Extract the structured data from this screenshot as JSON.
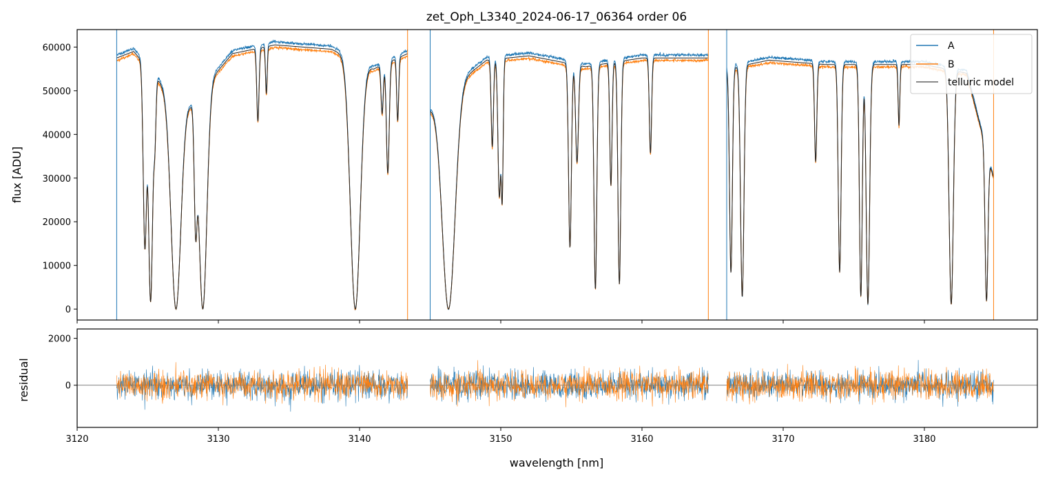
{
  "chart_data": [
    {
      "type": "line",
      "title": "zet_Oph_L3340_2024-06-17_06364  order 06",
      "ylabel": "flux [ADU]",
      "xlim": [
        3120,
        3188
      ],
      "ylim": [
        -2500,
        64000
      ],
      "yticks": [
        0,
        10000,
        20000,
        30000,
        40000,
        50000,
        60000
      ],
      "ytick_labels": [
        "0",
        "10000",
        "20000",
        "30000",
        "40000",
        "50000",
        "60000"
      ],
      "legend_placement": "top-right",
      "legend": [
        "A",
        "B",
        "telluric model"
      ],
      "colors": {
        "A": "#1f77b4",
        "B": "#ff7f0e",
        "model": "#202020"
      },
      "segments": [
        [
          3122.8,
          3143.4
        ],
        [
          3145.0,
          3164.7
        ],
        [
          3166.0,
          3184.9
        ]
      ],
      "continuum": [
        [
          3122.8,
          57500
        ],
        [
          3124.0,
          59000
        ],
        [
          3126.0,
          51500
        ],
        [
          3128.0,
          47000
        ],
        [
          3131.0,
          58500
        ],
        [
          3134.0,
          60500
        ],
        [
          3138.0,
          59500
        ],
        [
          3141.0,
          55000
        ],
        [
          3143.4,
          58500
        ],
        [
          3145.0,
          46000
        ],
        [
          3147.0,
          52000
        ],
        [
          3149.0,
          57000
        ],
        [
          3152.0,
          58000
        ],
        [
          3156.0,
          55500
        ],
        [
          3160.0,
          57500
        ],
        [
          3164.7,
          57500
        ],
        [
          3166.0,
          55000
        ],
        [
          3169.0,
          57000
        ],
        [
          3173.0,
          56000
        ],
        [
          3176.0,
          56000
        ],
        [
          3180.0,
          56000
        ],
        [
          3183.0,
          54000
        ],
        [
          3184.9,
          30000
        ]
      ],
      "absorption_lines": [
        {
          "center": 3124.8,
          "depth": 0.75,
          "width": 0.12
        },
        {
          "center": 3125.2,
          "depth": 0.97,
          "width": 0.15
        },
        {
          "center": 3125.5,
          "depth": 0.25,
          "width": 0.08
        },
        {
          "center": 3127.0,
          "depth": 1.0,
          "width": 0.35
        },
        {
          "center": 3128.4,
          "depth": 0.6,
          "width": 0.1
        },
        {
          "center": 3128.9,
          "depth": 1.0,
          "width": 0.28
        },
        {
          "center": 3132.8,
          "depth": 0.28,
          "width": 0.08
        },
        {
          "center": 3133.4,
          "depth": 0.18,
          "width": 0.06
        },
        {
          "center": 3139.7,
          "depth": 1.0,
          "width": 0.35
        },
        {
          "center": 3141.6,
          "depth": 0.2,
          "width": 0.08
        },
        {
          "center": 3142.0,
          "depth": 0.45,
          "width": 0.1
        },
        {
          "center": 3142.7,
          "depth": 0.25,
          "width": 0.07
        },
        {
          "center": 3146.3,
          "depth": 1.0,
          "width": 0.45
        },
        {
          "center": 3149.4,
          "depth": 0.35,
          "width": 0.08
        },
        {
          "center": 3149.9,
          "depth": 0.55,
          "width": 0.1
        },
        {
          "center": 3150.1,
          "depth": 0.55,
          "width": 0.07
        },
        {
          "center": 3154.9,
          "depth": 0.75,
          "width": 0.1
        },
        {
          "center": 3155.4,
          "depth": 0.4,
          "width": 0.1
        },
        {
          "center": 3156.7,
          "depth": 0.92,
          "width": 0.1
        },
        {
          "center": 3157.8,
          "depth": 0.5,
          "width": 0.08
        },
        {
          "center": 3158.4,
          "depth": 0.9,
          "width": 0.1
        },
        {
          "center": 3160.6,
          "depth": 0.38,
          "width": 0.08
        },
        {
          "center": 3166.3,
          "depth": 0.85,
          "width": 0.1
        },
        {
          "center": 3167.1,
          "depth": 0.95,
          "width": 0.12
        },
        {
          "center": 3172.3,
          "depth": 0.4,
          "width": 0.08
        },
        {
          "center": 3174.0,
          "depth": 0.85,
          "width": 0.1
        },
        {
          "center": 3175.5,
          "depth": 0.95,
          "width": 0.1
        },
        {
          "center": 3176.0,
          "depth": 0.98,
          "width": 0.12
        },
        {
          "center": 3178.2,
          "depth": 0.25,
          "width": 0.06
        },
        {
          "center": 3181.9,
          "depth": 0.98,
          "width": 0.15
        },
        {
          "center": 3184.4,
          "depth": 0.95,
          "width": 0.1
        }
      ]
    },
    {
      "type": "line",
      "xlabel": "wavelength [nm]",
      "ylabel": "residual",
      "xlim": [
        3120,
        3188
      ],
      "ylim": [
        -1800,
        2400
      ],
      "xticks": [
        3120,
        3130,
        3140,
        3150,
        3160,
        3170,
        3180
      ],
      "xtick_labels": [
        "3120",
        "3130",
        "3140",
        "3150",
        "3160",
        "3170",
        "3180"
      ],
      "yticks": [
        0,
        2000
      ],
      "ytick_labels": [
        "0",
        "2000"
      ],
      "noise_level": 300,
      "reference_line": 0,
      "series": [
        {
          "name": "A"
        },
        {
          "name": "B"
        }
      ]
    }
  ]
}
